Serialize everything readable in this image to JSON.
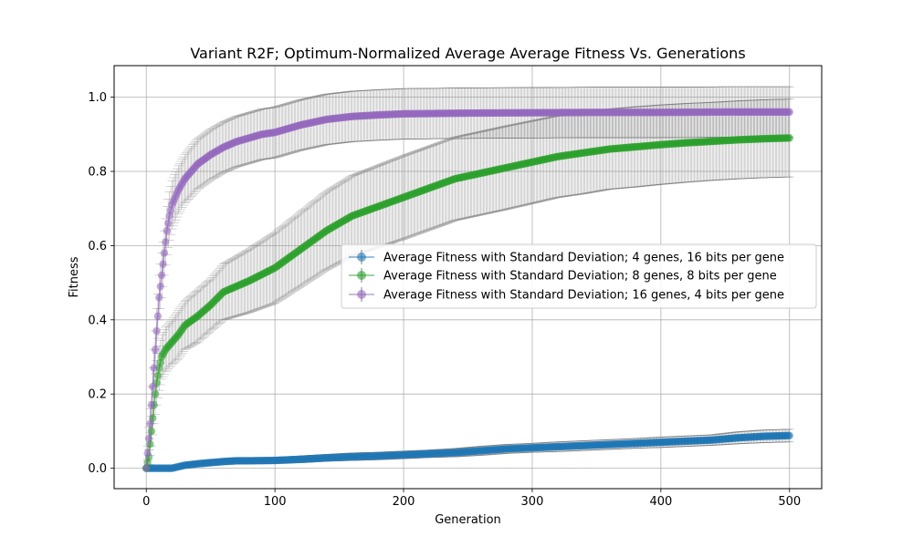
{
  "chart_data": {
    "type": "line",
    "title": "Variant R2F; Optimum-Normalized Average Average Fitness Vs. Generations",
    "xlabel": "Generation",
    "ylabel": "Fitness",
    "xlim": [
      -25,
      525
    ],
    "ylim": [
      -0.055,
      1.085
    ],
    "xticks": [
      0,
      100,
      200,
      300,
      400,
      500
    ],
    "yticks": [
      0.0,
      0.2,
      0.4,
      0.6,
      0.8,
      1.0
    ],
    "xtick_labels": [
      "0",
      "100",
      "200",
      "300",
      "400",
      "500"
    ],
    "ytick_labels": [
      "0.0",
      "0.2",
      "0.4",
      "0.6",
      "0.8",
      "1.0"
    ],
    "grid": true,
    "legend_position": "center-right",
    "errorbar_color": "#808080",
    "series": [
      {
        "name": "Average Fitness with Standard Deviation; 4 genes, 16 bits per gene",
        "color": "#1f77b4",
        "x": [
          0,
          10,
          20,
          30,
          40,
          50,
          60,
          70,
          80,
          100,
          120,
          140,
          160,
          180,
          200,
          220,
          240,
          260,
          280,
          300,
          320,
          340,
          360,
          380,
          400,
          420,
          440,
          460,
          480,
          500
        ],
        "y": [
          0.0,
          0.0,
          0.0,
          0.008,
          0.012,
          0.015,
          0.018,
          0.02,
          0.02,
          0.021,
          0.024,
          0.028,
          0.031,
          0.033,
          0.036,
          0.039,
          0.042,
          0.047,
          0.052,
          0.055,
          0.058,
          0.061,
          0.064,
          0.067,
          0.07,
          0.073,
          0.076,
          0.082,
          0.086,
          0.088
        ],
        "std": [
          0.0,
          0.0,
          0.0,
          0.005,
          0.006,
          0.007,
          0.008,
          0.008,
          0.008,
          0.008,
          0.009,
          0.009,
          0.01,
          0.01,
          0.01,
          0.01,
          0.011,
          0.012,
          0.012,
          0.012,
          0.013,
          0.013,
          0.013,
          0.013,
          0.014,
          0.014,
          0.014,
          0.016,
          0.017,
          0.017
        ]
      },
      {
        "name": "Average Fitness with Standard Deviation; 8 genes, 8 bits per gene",
        "color": "#2ca02c",
        "x": [
          0,
          2,
          4,
          6,
          8,
          10,
          12,
          15,
          20,
          25,
          30,
          40,
          50,
          60,
          70,
          80,
          100,
          120,
          140,
          160,
          180,
          200,
          220,
          240,
          260,
          280,
          300,
          320,
          340,
          360,
          380,
          400,
          420,
          440,
          460,
          480,
          500
        ],
        "y": [
          0.0,
          0.03,
          0.1,
          0.17,
          0.23,
          0.27,
          0.3,
          0.32,
          0.34,
          0.36,
          0.385,
          0.41,
          0.44,
          0.475,
          0.49,
          0.505,
          0.54,
          0.59,
          0.64,
          0.68,
          0.705,
          0.73,
          0.755,
          0.78,
          0.795,
          0.81,
          0.825,
          0.84,
          0.85,
          0.86,
          0.866,
          0.872,
          0.877,
          0.881,
          0.885,
          0.888,
          0.89
        ],
        "std": [
          0.0,
          0.02,
          0.04,
          0.05,
          0.06,
          0.06,
          0.06,
          0.06,
          0.06,
          0.065,
          0.065,
          0.07,
          0.07,
          0.075,
          0.08,
          0.085,
          0.095,
          0.1,
          0.105,
          0.108,
          0.11,
          0.112,
          0.112,
          0.112,
          0.112,
          0.112,
          0.111,
          0.11,
          0.11,
          0.108,
          0.108,
          0.107,
          0.106,
          0.105,
          0.105,
          0.105,
          0.105
        ]
      },
      {
        "name": "Average Fitness with Standard Deviation; 16 genes, 4 bits per gene",
        "color": "#9467bd",
        "x": [
          0,
          1,
          2,
          3,
          4,
          5,
          6,
          7,
          8,
          9,
          10,
          12,
          14,
          16,
          18,
          20,
          25,
          30,
          35,
          40,
          50,
          60,
          70,
          80,
          90,
          100,
          120,
          140,
          160,
          180,
          200,
          250,
          300,
          350,
          400,
          450,
          500
        ],
        "y": [
          0.0,
          0.04,
          0.08,
          0.12,
          0.17,
          0.22,
          0.27,
          0.32,
          0.37,
          0.41,
          0.46,
          0.52,
          0.58,
          0.64,
          0.68,
          0.71,
          0.75,
          0.78,
          0.8,
          0.82,
          0.845,
          0.865,
          0.88,
          0.89,
          0.9,
          0.905,
          0.925,
          0.94,
          0.948,
          0.952,
          0.955,
          0.957,
          0.958,
          0.959,
          0.959,
          0.96,
          0.96
        ],
        "std": [
          0.0,
          0.02,
          0.03,
          0.04,
          0.05,
          0.05,
          0.05,
          0.05,
          0.06,
          0.06,
          0.06,
          0.06,
          0.06,
          0.065,
          0.065,
          0.065,
          0.065,
          0.065,
          0.068,
          0.068,
          0.068,
          0.068,
          0.068,
          0.068,
          0.068,
          0.068,
          0.068,
          0.068,
          0.068,
          0.068,
          0.068,
          0.068,
          0.068,
          0.068,
          0.068,
          0.068,
          0.068
        ]
      }
    ]
  }
}
